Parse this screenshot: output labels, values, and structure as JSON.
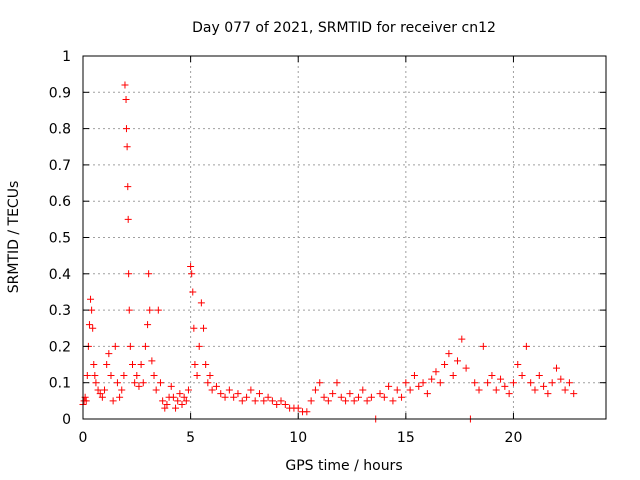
{
  "chart_data": {
    "type": "scatter",
    "title": "Day 077 of 2021, SRMTID for receiver cn12",
    "xlabel": "GPS time / hours",
    "ylabel": "SRMTID / TECUs",
    "xlim": [
      0,
      24.3
    ],
    "ylim": [
      0,
      1
    ],
    "xticks": [
      0,
      5,
      10,
      15,
      20
    ],
    "yticks": [
      0,
      0.1,
      0.2,
      0.3,
      0.4,
      0.5,
      0.6,
      0.7,
      0.8,
      0.9,
      1
    ],
    "ytick_labels": [
      "0",
      "0.1",
      "0.2",
      "0.3",
      "0.4",
      "0.5",
      "0.6",
      "0.7",
      "0.8",
      "0.9",
      "1"
    ],
    "grid": true,
    "marker": "+",
    "series_color": "#ff0000",
    "series": [
      {
        "name": "SRMTID",
        "points": [
          [
            0.0,
            0.04
          ],
          [
            0.05,
            0.05
          ],
          [
            0.1,
            0.06
          ],
          [
            0.15,
            0.05
          ],
          [
            0.2,
            0.12
          ],
          [
            0.25,
            0.2
          ],
          [
            0.3,
            0.26
          ],
          [
            0.35,
            0.33
          ],
          [
            0.4,
            0.3
          ],
          [
            0.45,
            0.25
          ],
          [
            0.5,
            0.15
          ],
          [
            0.55,
            0.12
          ],
          [
            0.6,
            0.1
          ],
          [
            0.7,
            0.08
          ],
          [
            0.8,
            0.07
          ],
          [
            0.9,
            0.06
          ],
          [
            1.0,
            0.08
          ],
          [
            1.1,
            0.15
          ],
          [
            1.2,
            0.18
          ],
          [
            1.3,
            0.12
          ],
          [
            1.4,
            0.05
          ],
          [
            1.5,
            0.2
          ],
          [
            1.6,
            0.1
          ],
          [
            1.7,
            0.06
          ],
          [
            1.8,
            0.08
          ],
          [
            1.9,
            0.12
          ],
          [
            1.95,
            0.92
          ],
          [
            2.0,
            0.88
          ],
          [
            2.02,
            0.8
          ],
          [
            2.05,
            0.75
          ],
          [
            2.08,
            0.64
          ],
          [
            2.1,
            0.55
          ],
          [
            2.12,
            0.4
          ],
          [
            2.15,
            0.3
          ],
          [
            2.2,
            0.2
          ],
          [
            2.3,
            0.15
          ],
          [
            2.4,
            0.1
          ],
          [
            2.5,
            0.12
          ],
          [
            2.6,
            0.09
          ],
          [
            2.7,
            0.15
          ],
          [
            2.8,
            0.1
          ],
          [
            2.9,
            0.2
          ],
          [
            3.0,
            0.26
          ],
          [
            3.05,
            0.4
          ],
          [
            3.1,
            0.3
          ],
          [
            3.2,
            0.16
          ],
          [
            3.3,
            0.12
          ],
          [
            3.4,
            0.08
          ],
          [
            3.5,
            0.3
          ],
          [
            3.6,
            0.1
          ],
          [
            3.7,
            0.05
          ],
          [
            3.8,
            0.03
          ],
          [
            3.9,
            0.04
          ],
          [
            4.0,
            0.06
          ],
          [
            4.1,
            0.09
          ],
          [
            4.2,
            0.06
          ],
          [
            4.3,
            0.03
          ],
          [
            4.4,
            0.05
          ],
          [
            4.5,
            0.07
          ],
          [
            4.6,
            0.04
          ],
          [
            4.7,
            0.06
          ],
          [
            4.8,
            0.05
          ],
          [
            4.9,
            0.08
          ],
          [
            5.0,
            0.42
          ],
          [
            5.05,
            0.4
          ],
          [
            5.1,
            0.35
          ],
          [
            5.15,
            0.25
          ],
          [
            5.2,
            0.15
          ],
          [
            5.3,
            0.12
          ],
          [
            5.4,
            0.2
          ],
          [
            5.5,
            0.32
          ],
          [
            5.6,
            0.25
          ],
          [
            5.7,
            0.15
          ],
          [
            5.8,
            0.1
          ],
          [
            5.9,
            0.12
          ],
          [
            6.0,
            0.08
          ],
          [
            6.2,
            0.09
          ],
          [
            6.4,
            0.07
          ],
          [
            6.6,
            0.06
          ],
          [
            6.8,
            0.08
          ],
          [
            7.0,
            0.06
          ],
          [
            7.2,
            0.07
          ],
          [
            7.4,
            0.05
          ],
          [
            7.6,
            0.06
          ],
          [
            7.8,
            0.08
          ],
          [
            8.0,
            0.05
          ],
          [
            8.2,
            0.07
          ],
          [
            8.4,
            0.05
          ],
          [
            8.6,
            0.06
          ],
          [
            8.8,
            0.05
          ],
          [
            9.0,
            0.04
          ],
          [
            9.2,
            0.05
          ],
          [
            9.4,
            0.04
          ],
          [
            9.6,
            0.03
          ],
          [
            9.8,
            0.03
          ],
          [
            10.0,
            0.03
          ],
          [
            10.2,
            0.02
          ],
          [
            10.4,
            0.02
          ],
          [
            10.6,
            0.05
          ],
          [
            10.8,
            0.08
          ],
          [
            11.0,
            0.1
          ],
          [
            11.2,
            0.06
          ],
          [
            11.4,
            0.05
          ],
          [
            11.6,
            0.07
          ],
          [
            11.8,
            0.1
          ],
          [
            12.0,
            0.06
          ],
          [
            12.2,
            0.05
          ],
          [
            12.4,
            0.07
          ],
          [
            12.6,
            0.05
          ],
          [
            12.8,
            0.06
          ],
          [
            13.0,
            0.08
          ],
          [
            13.2,
            0.05
          ],
          [
            13.4,
            0.06
          ],
          [
            13.6,
            0.0
          ],
          [
            13.8,
            0.07
          ],
          [
            14.0,
            0.06
          ],
          [
            14.2,
            0.09
          ],
          [
            14.4,
            0.05
          ],
          [
            14.6,
            0.08
          ],
          [
            14.8,
            0.06
          ],
          [
            15.0,
            0.1
          ],
          [
            15.2,
            0.08
          ],
          [
            15.4,
            0.12
          ],
          [
            15.6,
            0.09
          ],
          [
            15.8,
            0.1
          ],
          [
            16.0,
            0.07
          ],
          [
            16.2,
            0.11
          ],
          [
            16.4,
            0.13
          ],
          [
            16.6,
            0.1
          ],
          [
            16.8,
            0.15
          ],
          [
            17.0,
            0.18
          ],
          [
            17.2,
            0.12
          ],
          [
            17.4,
            0.16
          ],
          [
            17.6,
            0.22
          ],
          [
            17.8,
            0.14
          ],
          [
            18.0,
            0.0
          ],
          [
            18.2,
            0.1
          ],
          [
            18.4,
            0.08
          ],
          [
            18.6,
            0.2
          ],
          [
            18.8,
            0.1
          ],
          [
            19.0,
            0.12
          ],
          [
            19.2,
            0.08
          ],
          [
            19.4,
            0.11
          ],
          [
            19.6,
            0.09
          ],
          [
            19.8,
            0.07
          ],
          [
            20.0,
            0.1
          ],
          [
            20.2,
            0.15
          ],
          [
            20.4,
            0.12
          ],
          [
            20.6,
            0.2
          ],
          [
            20.8,
            0.1
          ],
          [
            21.0,
            0.08
          ],
          [
            21.2,
            0.12
          ],
          [
            21.4,
            0.09
          ],
          [
            21.6,
            0.07
          ],
          [
            21.8,
            0.1
          ],
          [
            22.0,
            0.14
          ],
          [
            22.2,
            0.11
          ],
          [
            22.4,
            0.08
          ],
          [
            22.6,
            0.1
          ],
          [
            22.8,
            0.07
          ]
        ]
      }
    ]
  }
}
